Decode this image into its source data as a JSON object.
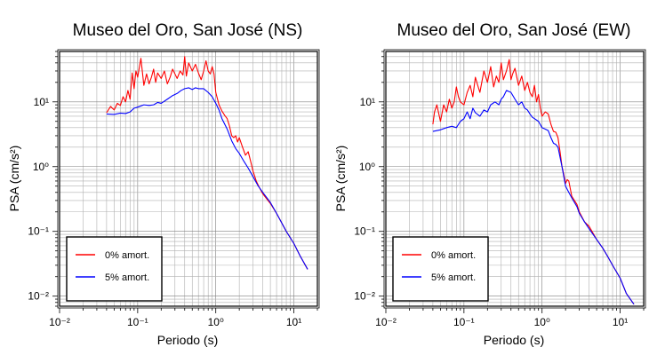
{
  "chart_data": [
    {
      "type": "line",
      "title": "Museo del Oro, San José (NS)",
      "xlabel": "Periodo (s)",
      "ylabel": "PSA (cm/s²)",
      "x_scale": "log",
      "y_scale": "log",
      "xlim": [
        0.01,
        20
      ],
      "ylim": [
        0.007,
        60
      ],
      "x_ticks": [
        "10⁻²",
        "10⁻¹",
        "10⁰",
        "10¹"
      ],
      "y_ticks": [
        "10⁻²",
        "10⁻¹",
        "10⁰",
        "10¹"
      ],
      "grid": true,
      "legend_position": "bottom-left",
      "series": [
        {
          "name": "0% amort.",
          "color": "#ff0000",
          "points": [
            [
              0.04,
              6.8
            ],
            [
              0.045,
              8.5
            ],
            [
              0.05,
              7.5
            ],
            [
              0.055,
              9.5
            ],
            [
              0.06,
              8.8
            ],
            [
              0.065,
              12
            ],
            [
              0.07,
              10
            ],
            [
              0.075,
              15
            ],
            [
              0.08,
              11
            ],
            [
              0.085,
              28
            ],
            [
              0.09,
              16
            ],
            [
              0.095,
              30
            ],
            [
              0.1,
              24
            ],
            [
              0.11,
              47
            ],
            [
              0.12,
              18
            ],
            [
              0.13,
              27
            ],
            [
              0.14,
              19
            ],
            [
              0.15,
              24
            ],
            [
              0.16,
              32
            ],
            [
              0.17,
              20
            ],
            [
              0.18,
              28
            ],
            [
              0.2,
              23
            ],
            [
              0.22,
              30
            ],
            [
              0.24,
              19
            ],
            [
              0.26,
              24
            ],
            [
              0.28,
              32
            ],
            [
              0.3,
              27
            ],
            [
              0.32,
              23
            ],
            [
              0.35,
              30
            ],
            [
              0.38,
              26
            ],
            [
              0.4,
              50
            ],
            [
              0.42,
              25
            ],
            [
              0.45,
              40
            ],
            [
              0.5,
              30
            ],
            [
              0.55,
              38
            ],
            [
              0.6,
              28
            ],
            [
              0.65,
              22
            ],
            [
              0.7,
              30
            ],
            [
              0.75,
              43
            ],
            [
              0.8,
              30
            ],
            [
              0.85,
              27
            ],
            [
              0.9,
              35
            ],
            [
              0.95,
              27
            ],
            [
              1.0,
              14
            ],
            [
              1.1,
              9
            ],
            [
              1.2,
              7.2
            ],
            [
              1.3,
              6.2
            ],
            [
              1.4,
              5.5
            ],
            [
              1.5,
              4.2
            ],
            [
              1.6,
              3.0
            ],
            [
              1.7,
              2.8
            ],
            [
              1.8,
              3.0
            ],
            [
              1.9,
              2.4
            ],
            [
              2.0,
              2.8
            ],
            [
              2.2,
              2.0
            ],
            [
              2.4,
              1.5
            ],
            [
              2.6,
              1.7
            ],
            [
              2.8,
              1.2
            ],
            [
              3.0,
              0.85
            ],
            [
              3.3,
              0.6
            ],
            [
              3.6,
              0.48
            ],
            [
              4,
              0.38
            ],
            [
              5,
              0.27
            ],
            [
              6,
              0.19
            ],
            [
              8,
              0.1
            ],
            [
              10,
              0.065
            ],
            [
              12,
              0.042
            ],
            [
              15,
              0.026
            ]
          ]
        },
        {
          "name": "5% amort.",
          "color": "#0000ff",
          "points": [
            [
              0.04,
              6.5
            ],
            [
              0.05,
              6.4
            ],
            [
              0.06,
              6.7
            ],
            [
              0.07,
              6.6
            ],
            [
              0.08,
              7.0
            ],
            [
              0.09,
              8.0
            ],
            [
              0.1,
              8.3
            ],
            [
              0.12,
              9.0
            ],
            [
              0.14,
              8.8
            ],
            [
              0.16,
              9.0
            ],
            [
              0.18,
              9.8
            ],
            [
              0.2,
              9.5
            ],
            [
              0.24,
              11
            ],
            [
              0.28,
              12.5
            ],
            [
              0.32,
              13.5
            ],
            [
              0.36,
              15
            ],
            [
              0.4,
              16
            ],
            [
              0.45,
              16.5
            ],
            [
              0.5,
              15.5
            ],
            [
              0.55,
              16.5
            ],
            [
              0.6,
              16
            ],
            [
              0.7,
              16
            ],
            [
              0.8,
              14
            ],
            [
              0.9,
              12
            ],
            [
              1.0,
              9.5
            ],
            [
              1.1,
              7.5
            ],
            [
              1.2,
              5.5
            ],
            [
              1.4,
              3.8
            ],
            [
              1.6,
              2.5
            ],
            [
              1.8,
              1.9
            ],
            [
              2.0,
              1.6
            ],
            [
              2.3,
              1.2
            ],
            [
              2.6,
              0.95
            ],
            [
              3.0,
              0.7
            ],
            [
              3.5,
              0.5
            ],
            [
              4,
              0.4
            ],
            [
              5,
              0.28
            ],
            [
              6,
              0.19
            ],
            [
              8,
              0.1
            ],
            [
              10,
              0.065
            ],
            [
              12,
              0.042
            ],
            [
              15,
              0.026
            ]
          ]
        }
      ]
    },
    {
      "type": "line",
      "title": "Museo del Oro, San José (EW)",
      "xlabel": "Periodo (s)",
      "ylabel": "PSA (cm/s²)",
      "x_scale": "log",
      "y_scale": "log",
      "xlim": [
        0.01,
        20
      ],
      "ylim": [
        0.007,
        60
      ],
      "x_ticks": [
        "10⁻²",
        "10⁻¹",
        "10⁰",
        "10¹"
      ],
      "y_ticks": [
        "10⁻²",
        "10⁻¹",
        "10⁰",
        "10¹"
      ],
      "grid": true,
      "legend_position": "bottom-left",
      "series": [
        {
          "name": "0% amort.",
          "color": "#ff0000",
          "points": [
            [
              0.04,
              4.5
            ],
            [
              0.042,
              7
            ],
            [
              0.045,
              9
            ],
            [
              0.05,
              5
            ],
            [
              0.055,
              9
            ],
            [
              0.06,
              7
            ],
            [
              0.065,
              11
            ],
            [
              0.07,
              8
            ],
            [
              0.075,
              10
            ],
            [
              0.08,
              17
            ],
            [
              0.085,
              12
            ],
            [
              0.09,
              10
            ],
            [
              0.1,
              9
            ],
            [
              0.11,
              14
            ],
            [
              0.12,
              18
            ],
            [
              0.13,
              12
            ],
            [
              0.14,
              24
            ],
            [
              0.15,
              18
            ],
            [
              0.16,
              14
            ],
            [
              0.18,
              30
            ],
            [
              0.2,
              20
            ],
            [
              0.22,
              35
            ],
            [
              0.24,
              17
            ],
            [
              0.26,
              25
            ],
            [
              0.28,
              20
            ],
            [
              0.3,
              40
            ],
            [
              0.32,
              22
            ],
            [
              0.35,
              30
            ],
            [
              0.38,
              45
            ],
            [
              0.4,
              22
            ],
            [
              0.42,
              27
            ],
            [
              0.45,
              33
            ],
            [
              0.5,
              18
            ],
            [
              0.55,
              25
            ],
            [
              0.6,
              15
            ],
            [
              0.65,
              20
            ],
            [
              0.7,
              14
            ],
            [
              0.75,
              12
            ],
            [
              0.8,
              18
            ],
            [
              0.85,
              10
            ],
            [
              0.9,
              13
            ],
            [
              0.95,
              8
            ],
            [
              1.0,
              6
            ],
            [
              1.1,
              7
            ],
            [
              1.2,
              6.5
            ],
            [
              1.3,
              4.5
            ],
            [
              1.4,
              3.5
            ],
            [
              1.5,
              3.4
            ],
            [
              1.6,
              2.8
            ],
            [
              1.7,
              1.7
            ],
            [
              1.8,
              1.0
            ],
            [
              1.9,
              0.75
            ],
            [
              2.0,
              0.55
            ],
            [
              2.1,
              0.63
            ],
            [
              2.2,
              0.6
            ],
            [
              2.4,
              0.35
            ],
            [
              2.6,
              0.3
            ],
            [
              2.8,
              0.26
            ],
            [
              3,
              0.2
            ],
            [
              3.5,
              0.14
            ],
            [
              4,
              0.12
            ],
            [
              5,
              0.075
            ],
            [
              6,
              0.055
            ],
            [
              7,
              0.04
            ],
            [
              8,
              0.03
            ],
            [
              10,
              0.019
            ],
            [
              12,
              0.011
            ],
            [
              15,
              0.0075
            ]
          ]
        },
        {
          "name": "5% amort.",
          "color": "#0000ff",
          "points": [
            [
              0.04,
              3.5
            ],
            [
              0.05,
              3.7
            ],
            [
              0.06,
              4.0
            ],
            [
              0.07,
              4.2
            ],
            [
              0.08,
              4.0
            ],
            [
              0.09,
              5.0
            ],
            [
              0.1,
              5.5
            ],
            [
              0.11,
              7.0
            ],
            [
              0.12,
              5.5
            ],
            [
              0.13,
              8.0
            ],
            [
              0.14,
              6.8
            ],
            [
              0.16,
              6.0
            ],
            [
              0.18,
              7.5
            ],
            [
              0.2,
              7.0
            ],
            [
              0.22,
              9.0
            ],
            [
              0.25,
              10
            ],
            [
              0.28,
              9
            ],
            [
              0.3,
              11
            ],
            [
              0.32,
              12
            ],
            [
              0.35,
              15
            ],
            [
              0.4,
              14
            ],
            [
              0.45,
              11
            ],
            [
              0.5,
              9
            ],
            [
              0.55,
              10
            ],
            [
              0.6,
              8
            ],
            [
              0.65,
              7.5
            ],
            [
              0.7,
              6.5
            ],
            [
              0.75,
              5.8
            ],
            [
              0.8,
              5.5
            ],
            [
              0.9,
              5
            ],
            [
              1.0,
              4
            ],
            [
              1.1,
              3.8
            ],
            [
              1.2,
              3.6
            ],
            [
              1.3,
              2.8
            ],
            [
              1.4,
              2.3
            ],
            [
              1.5,
              2.2
            ],
            [
              1.6,
              2.0
            ],
            [
              1.7,
              1.4
            ],
            [
              1.8,
              1.0
            ],
            [
              1.9,
              0.7
            ],
            [
              2.0,
              0.5
            ],
            [
              2.2,
              0.4
            ],
            [
              2.4,
              0.33
            ],
            [
              2.6,
              0.28
            ],
            [
              2.8,
              0.24
            ],
            [
              3,
              0.19
            ],
            [
              3.5,
              0.14
            ],
            [
              4,
              0.11
            ],
            [
              5,
              0.075
            ],
            [
              6,
              0.055
            ],
            [
              7,
              0.04
            ],
            [
              8,
              0.03
            ],
            [
              10,
              0.019
            ],
            [
              12,
              0.011
            ],
            [
              15,
              0.0075
            ]
          ]
        }
      ]
    }
  ]
}
